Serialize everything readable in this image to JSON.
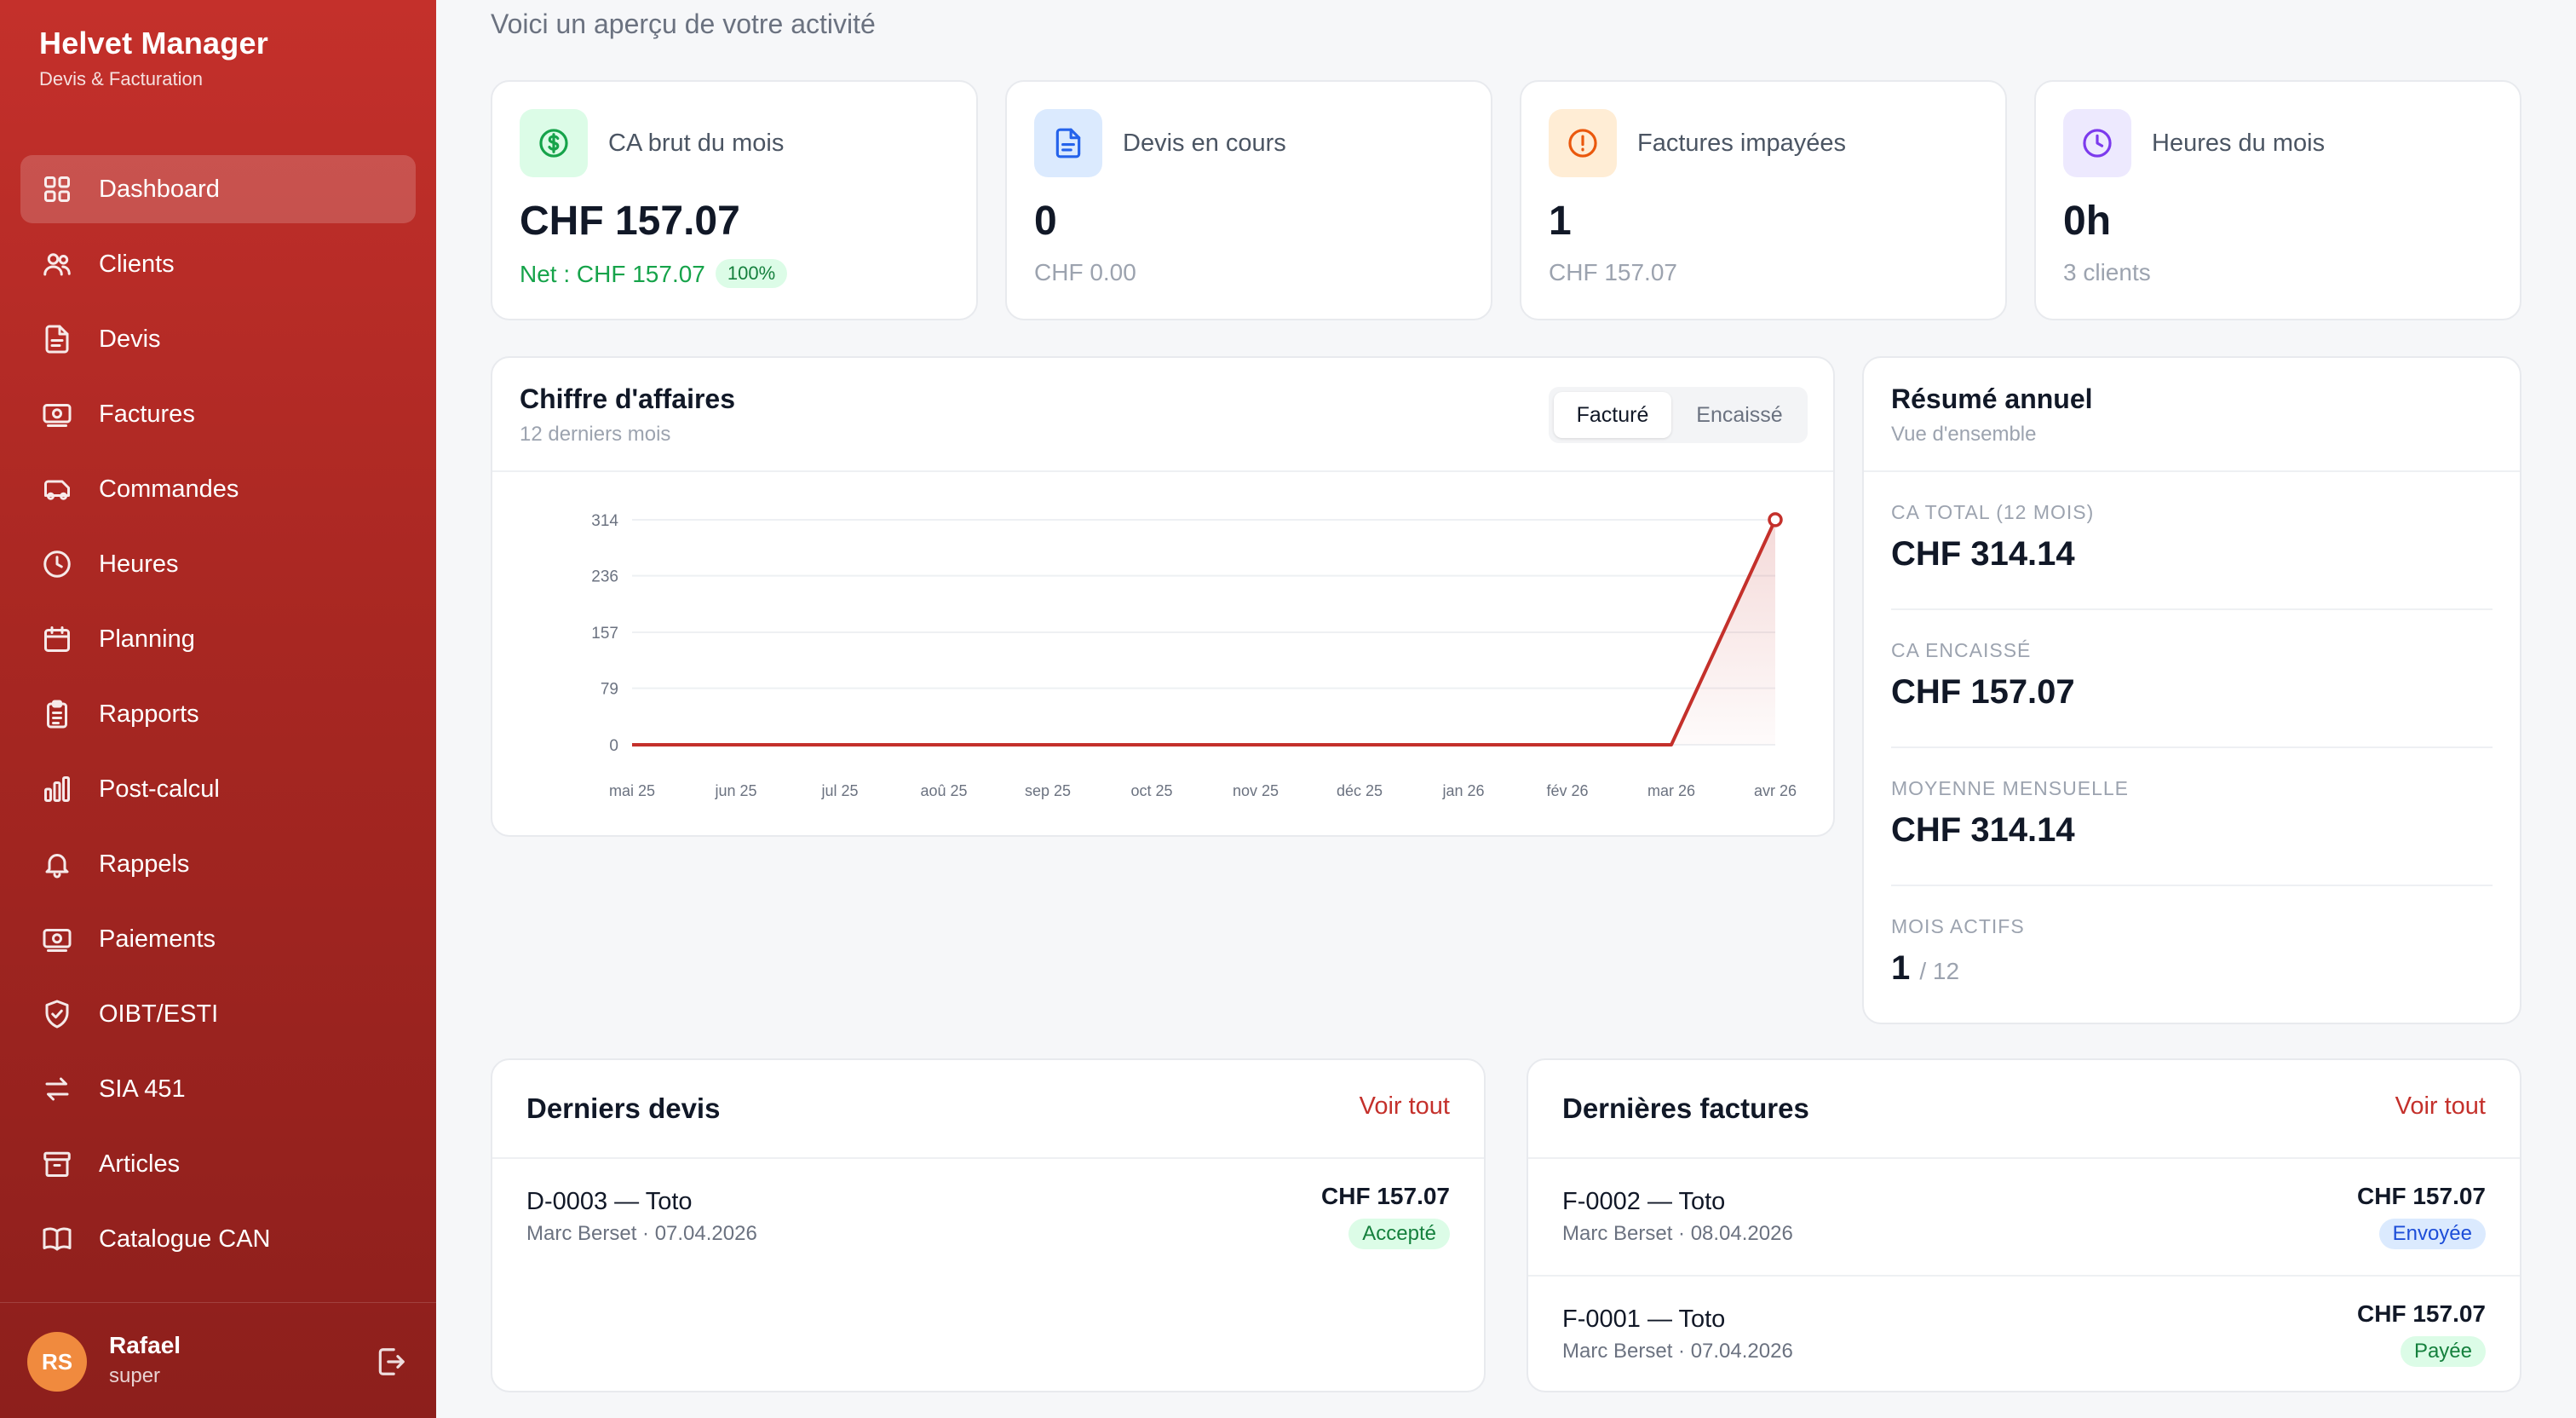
{
  "brand": {
    "title": "Helvet Manager",
    "subtitle": "Devis & Facturation"
  },
  "sidebar": {
    "items": [
      {
        "label": "Dashboard",
        "icon": "grid-icon",
        "active": true
      },
      {
        "label": "Clients",
        "icon": "users-icon"
      },
      {
        "label": "Devis",
        "icon": "document-icon"
      },
      {
        "label": "Factures",
        "icon": "banknote-icon"
      },
      {
        "label": "Commandes",
        "icon": "truck-icon"
      },
      {
        "label": "Heures",
        "icon": "clock-icon"
      },
      {
        "label": "Planning",
        "icon": "calendar-icon"
      },
      {
        "label": "Rapports",
        "icon": "clipboard-icon"
      },
      {
        "label": "Post-calcul",
        "icon": "bar-chart-icon"
      },
      {
        "label": "Rappels",
        "icon": "bell-icon"
      },
      {
        "label": "Paiements",
        "icon": "banknote-icon"
      },
      {
        "label": "OIBT/ESTI",
        "icon": "shield-check-icon"
      },
      {
        "label": "SIA 451",
        "icon": "arrows-swap-icon"
      },
      {
        "label": "Articles",
        "icon": "archive-icon"
      },
      {
        "label": "Catalogue CAN",
        "icon": "book-icon"
      }
    ]
  },
  "user": {
    "initials": "RS",
    "name": "Rafael",
    "role": "super"
  },
  "welcome": "Voici un aperçu de votre activité",
  "stats": [
    {
      "label": "CA brut du mois",
      "value": "CHF 157.07",
      "sub": "Net : CHF 157.07",
      "badge": "100%",
      "icon": "dollar-icon",
      "color": "#16a34a",
      "bg": "#dcfce7"
    },
    {
      "label": "Devis en cours",
      "value": "0",
      "sub": "CHF 0.00",
      "icon": "document-icon",
      "color": "#2563eb",
      "bg": "#dbeafe"
    },
    {
      "label": "Factures impayées",
      "value": "1",
      "sub": "CHF 157.07",
      "icon": "alert-icon",
      "color": "#ea580c",
      "bg": "#ffedd5"
    },
    {
      "label": "Heures du mois",
      "value": "0h",
      "sub": "3 clients",
      "icon": "clock-icon",
      "color": "#7c3aed",
      "bg": "#ede9fe"
    }
  ],
  "revenue": {
    "title": "Chiffre d'affaires",
    "subtitle": "12 derniers mois",
    "toggle": {
      "active": "Facturé",
      "inactive": "Encaissé"
    }
  },
  "chart_data": {
    "type": "area",
    "categories": [
      "mai 25",
      "jun 25",
      "jul 25",
      "aoû 25",
      "sep 25",
      "oct 25",
      "nov 25",
      "déc 25",
      "jan 26",
      "fév 26",
      "mar 26",
      "avr 26"
    ],
    "values": [
      0,
      0,
      0,
      0,
      0,
      0,
      0,
      0,
      0,
      0,
      0,
      314.14
    ],
    "yticks": [
      "0",
      "79",
      "157",
      "236",
      "314"
    ],
    "ylim": [
      0,
      314
    ],
    "grid": true,
    "color": "#c4302b"
  },
  "summary": {
    "title": "Résumé annuel",
    "subtitle": "Vue d'ensemble",
    "total_label": "CA TOTAL (12 MOIS)",
    "total_value": "CHF 314.14",
    "cashed_label": "CA ENCAISSÉ",
    "cashed_value": "CHF 157.07",
    "avg_label": "MOYENNE MENSUELLE",
    "avg_value": "CHF 314.14",
    "active_label": "MOIS ACTIFS",
    "active_value": "1",
    "active_total": "/ 12"
  },
  "quotes": {
    "title": "Derniers devis",
    "see_all": "Voir tout",
    "rows": [
      {
        "title": "D-0003 — Toto",
        "meta": "Marc Berset · 07.04.2026",
        "amount": "CHF 157.07",
        "status": "Accepté"
      }
    ]
  },
  "invoices": {
    "title": "Dernières factures",
    "see_all": "Voir tout",
    "rows": [
      {
        "title": "F-0002 — Toto",
        "meta": "Marc Berset · 08.04.2026",
        "amount": "CHF 157.07",
        "status": "Envoyée"
      },
      {
        "title": "F-0001 — Toto",
        "meta": "Marc Berset · 07.04.2026",
        "amount": "CHF 157.07",
        "status": "Payée"
      }
    ]
  }
}
